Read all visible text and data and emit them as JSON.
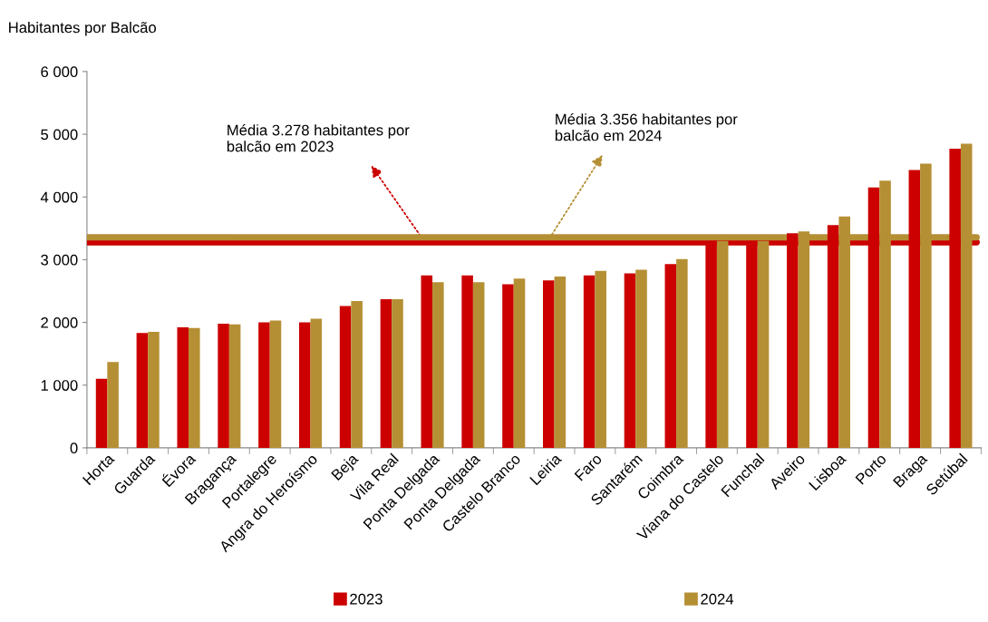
{
  "chart_data": {
    "type": "bar",
    "ylabel": "Habitantes por Balcão",
    "categories": [
      "Horta",
      "Guarda",
      "Évora",
      "Bragança",
      "Portalegre",
      "Angra do Heroísmo",
      "Beja",
      "Vila Real",
      "Ponta Delgada",
      "Ponta Delgada",
      "Castelo Branco",
      "Leiria",
      "Faro",
      "Santarém",
      "Coimbra",
      "Viana do Castelo",
      "Funchal",
      "Aveiro",
      "Lisboa",
      "Porto",
      "Braga",
      "Setúbal"
    ],
    "series": [
      {
        "name": "2023",
        "color": "#cc0000",
        "values": [
          1100,
          1830,
          1920,
          1980,
          2000,
          2000,
          2260,
          2370,
          2750,
          2750,
          2610,
          2670,
          2750,
          2780,
          2930,
          3300,
          3300,
          3420,
          3550,
          4150,
          4430,
          4770
        ]
      },
      {
        "name": "2024",
        "color": "#b58f34",
        "values": [
          1370,
          1850,
          1910,
          1970,
          2030,
          2060,
          2340,
          2370,
          2640,
          2640,
          2700,
          2730,
          2820,
          2840,
          3010,
          3300,
          3300,
          3450,
          3690,
          4260,
          4530,
          4850
        ]
      }
    ],
    "ylim": [
      0,
      6000
    ],
    "yticks": [
      {
        "value": 0,
        "label": "0"
      },
      {
        "value": 1000,
        "label": "1 000"
      },
      {
        "value": 2000,
        "label": "2 000"
      },
      {
        "value": 3000,
        "label": "3 000"
      },
      {
        "value": 4000,
        "label": "4 000"
      },
      {
        "value": 5000,
        "label": "5 000"
      },
      {
        "value": 6000,
        "label": "6 000"
      }
    ],
    "ref_lines": [
      {
        "axis": "y",
        "value": 3278,
        "label": "Média 3.278 habitantes por\nbalcão em 2023",
        "color": "#cc0000"
      },
      {
        "axis": "y",
        "value": 3356,
        "label": "Média 3.356 habitantes por\nbalcão em 2024",
        "color": "#b58f34"
      }
    ],
    "grid": false,
    "legend": "bottom"
  }
}
